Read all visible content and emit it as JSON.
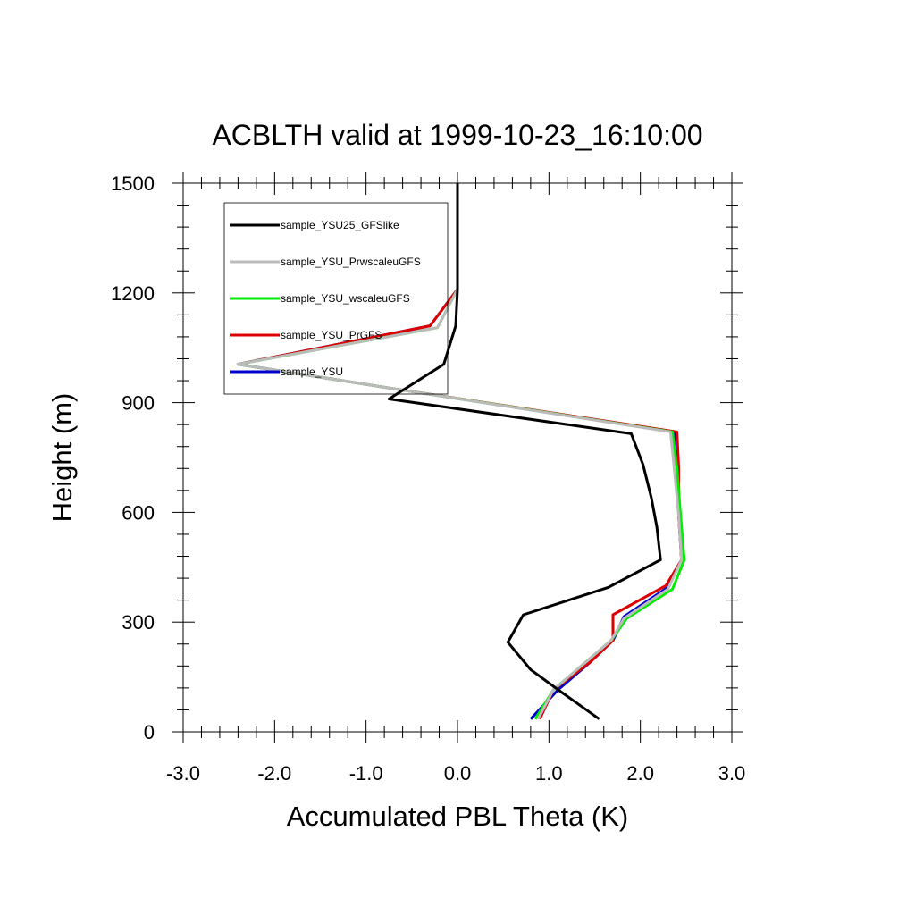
{
  "chart_data": {
    "type": "line",
    "title": "ACBLTH valid at 1999-10-23_16:10:00",
    "xlabel": "Accumulated PBL Theta (K)",
    "ylabel": "Height (m)",
    "xlim": [
      -3.0,
      3.0
    ],
    "ylim": [
      0,
      1500
    ],
    "xticks": [
      -3.0,
      -2.0,
      -1.0,
      0.0,
      1.0,
      2.0,
      3.0
    ],
    "xtick_labels": [
      "-3.0",
      "-2.0",
      "-1.0",
      "0.0",
      "1.0",
      "2.0",
      "3.0"
    ],
    "yticks": [
      0,
      300,
      600,
      900,
      1200,
      1500
    ],
    "ytick_labels": [
      "0",
      "300",
      "600",
      "900",
      "1200",
      "1500"
    ],
    "grid": false,
    "legend_position": "top-left",
    "series": [
      {
        "name": "sample_YSU",
        "color": "#0000cc",
        "x": [
          0.8,
          1.1,
          1.45,
          1.7,
          1.82,
          2.3,
          2.45,
          2.42,
          2.4,
          2.38,
          -0.75,
          -2.4,
          -0.3,
          0.0,
          0.0
        ],
        "y": [
          35,
          115,
          190,
          250,
          315,
          395,
          470,
          590,
          720,
          820,
          940,
          1005,
          1110,
          1210,
          1300
        ]
      },
      {
        "name": "sample_YSU_PrGFS",
        "color": "#dd0000",
        "x": [
          0.9,
          1.05,
          1.45,
          1.7,
          1.7,
          2.28,
          2.45,
          2.42,
          2.42,
          2.4,
          -0.75,
          -2.4,
          -0.3,
          0.0,
          0.0
        ],
        "y": [
          35,
          115,
          190,
          250,
          320,
          400,
          470,
          590,
          720,
          820,
          940,
          1005,
          1110,
          1210,
          1300
        ]
      },
      {
        "name": "sample_YSU_wscaleuGFS",
        "color": "#00ee00",
        "x": [
          0.85,
          1.05,
          1.4,
          1.68,
          1.85,
          2.35,
          2.48,
          2.44,
          2.4,
          2.35,
          -0.75,
          -2.4,
          -0.22,
          0.0,
          0.0
        ],
        "y": [
          35,
          115,
          190,
          250,
          310,
          390,
          470,
          590,
          720,
          820,
          940,
          1005,
          1105,
          1210,
          1300
        ]
      },
      {
        "name": "sample_YSU_PrwscaleuGFS",
        "color": "#bbbbbb",
        "x": [
          0.88,
          1.05,
          1.4,
          1.68,
          1.82,
          2.3,
          2.45,
          2.42,
          2.37,
          2.33,
          -0.75,
          -2.4,
          -0.22,
          0.0,
          0.0
        ],
        "y": [
          35,
          115,
          190,
          250,
          310,
          390,
          470,
          590,
          720,
          820,
          940,
          1005,
          1105,
          1210,
          1300
        ]
      },
      {
        "name": "sample_YSU25_GFSlike",
        "color": "#000000",
        "x": [
          1.55,
          1.1,
          0.8,
          0.55,
          0.72,
          1.65,
          2.22,
          2.18,
          2.12,
          2.03,
          1.9,
          -0.75,
          -0.15,
          -0.02,
          0.0,
          0.0,
          0.0
        ],
        "y": [
          35,
          115,
          170,
          245,
          320,
          395,
          470,
          560,
          640,
          730,
          815,
          910,
          1005,
          1110,
          1210,
          1300,
          1500
        ]
      }
    ],
    "legend_order": [
      "sample_YSU25_GFSlike",
      "sample_YSU_PrwscaleuGFS",
      "sample_YSU_wscaleuGFS",
      "sample_YSU_PrGFS",
      "sample_YSU"
    ]
  }
}
